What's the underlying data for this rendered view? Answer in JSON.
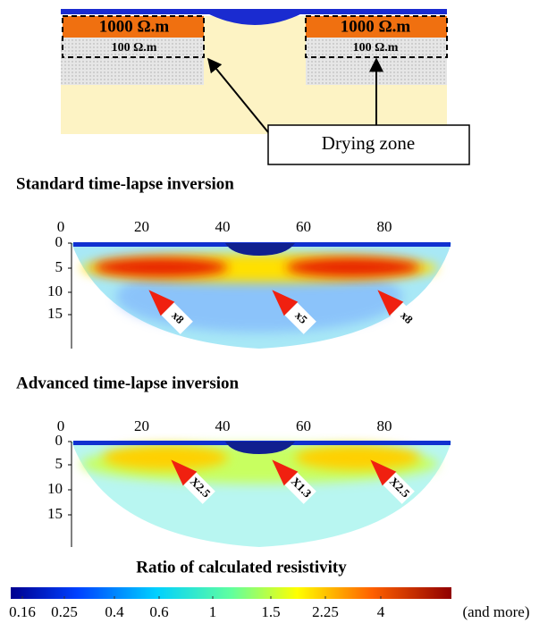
{
  "schematic": {
    "blocks": [
      "1000 Ω.m",
      "1000 Ω.m"
    ],
    "layers": [
      "100 Ω.m",
      "100 Ω.m"
    ],
    "callout": "Drying zone"
  },
  "panels": [
    {
      "title": "Standard time-lapse inversion",
      "xticks": [
        "0",
        "20",
        "40",
        "60",
        "80"
      ],
      "yticks": [
        "0",
        "5",
        "10",
        "15"
      ],
      "markers": [
        "x8",
        "x5",
        "x8"
      ]
    },
    {
      "title": "Advanced time-lapse inversion",
      "xticks": [
        "0",
        "20",
        "40",
        "60",
        "80"
      ],
      "yticks": [
        "0",
        "5",
        "10",
        "15"
      ],
      "markers": [
        "X2.5",
        "X1.3",
        "X2.5"
      ]
    }
  ],
  "colorbar": {
    "title": "Ratio of calculated resistivity",
    "labels": [
      "0.16",
      "0.25",
      "0.4",
      "0.6",
      "1",
      "1.5",
      "2.25",
      "4",
      "(and more)"
    ]
  }
}
